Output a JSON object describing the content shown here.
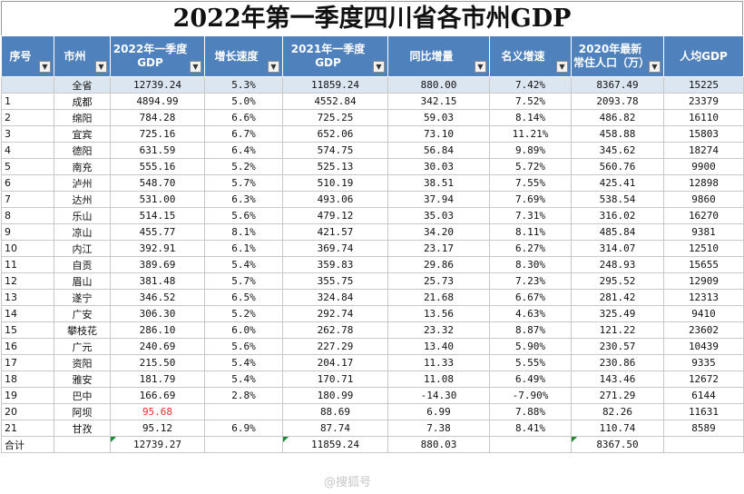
{
  "title": "2022年第一季度四川省各市州GDP",
  "headers": [
    {
      "label": "序号",
      "filter": true
    },
    {
      "label": "市州",
      "filter": true
    },
    {
      "label": "2022年一季度GDP",
      "filter": true
    },
    {
      "label": "增长速度",
      "filter": true
    },
    {
      "label": "2021年一季度GDP",
      "filter": true
    },
    {
      "label": "同比增量",
      "filter": true
    },
    {
      "label": "名义增速",
      "filter": true
    },
    {
      "label": "2020年最新常住人口（万）",
      "filter": true
    },
    {
      "label": "人均GDP",
      "filter": false
    }
  ],
  "filter_icon": "dropdown-arrow-icon",
  "rows": [
    {
      "seq": "",
      "city": "全省",
      "gdp2022": "12739.24",
      "growth": "5.3%",
      "gdp2021": "11859.24",
      "increase": "880.00",
      "nominal": "7.42%",
      "population": "8367.49",
      "per_capita": "15225"
    },
    {
      "seq": "1",
      "city": "成都",
      "gdp2022": "4894.99",
      "growth": "5.0%",
      "gdp2021": "4552.84",
      "increase": "342.15",
      "nominal": "7.52%",
      "population": "2093.78",
      "per_capita": "23379"
    },
    {
      "seq": "2",
      "city": "绵阳",
      "gdp2022": "784.28",
      "growth": "6.6%",
      "gdp2021": "725.25",
      "increase": "59.03",
      "nominal": "8.14%",
      "population": "486.82",
      "per_capita": "16110"
    },
    {
      "seq": "3",
      "city": "宜宾",
      "gdp2022": "725.16",
      "growth": "6.7%",
      "gdp2021": "652.06",
      "increase": "73.10",
      "nominal": "11.21%",
      "population": "458.88",
      "per_capita": "15803"
    },
    {
      "seq": "4",
      "city": "德阳",
      "gdp2022": "631.59",
      "growth": "6.4%",
      "gdp2021": "574.75",
      "increase": "56.84",
      "nominal": "9.89%",
      "population": "345.62",
      "per_capita": "18274"
    },
    {
      "seq": "5",
      "city": "南充",
      "gdp2022": "555.16",
      "growth": "5.2%",
      "gdp2021": "525.13",
      "increase": "30.03",
      "nominal": "5.72%",
      "population": "560.76",
      "per_capita": "9900"
    },
    {
      "seq": "6",
      "city": "泸州",
      "gdp2022": "548.70",
      "growth": "5.7%",
      "gdp2021": "510.19",
      "increase": "38.51",
      "nominal": "7.55%",
      "population": "425.41",
      "per_capita": "12898"
    },
    {
      "seq": "7",
      "city": "达州",
      "gdp2022": "531.00",
      "growth": "6.3%",
      "gdp2021": "493.06",
      "increase": "37.94",
      "nominal": "7.69%",
      "population": "538.54",
      "per_capita": "9860"
    },
    {
      "seq": "8",
      "city": "乐山",
      "gdp2022": "514.15",
      "growth": "5.6%",
      "gdp2021": "479.12",
      "increase": "35.03",
      "nominal": "7.31%",
      "population": "316.02",
      "per_capita": "16270"
    },
    {
      "seq": "9",
      "city": "凉山",
      "gdp2022": "455.77",
      "growth": "8.1%",
      "gdp2021": "421.57",
      "increase": "34.20",
      "nominal": "8.11%",
      "population": "485.84",
      "per_capita": "9381"
    },
    {
      "seq": "10",
      "city": "内江",
      "gdp2022": "392.91",
      "growth": "6.1%",
      "gdp2021": "369.74",
      "increase": "23.17",
      "nominal": "6.27%",
      "population": "314.07",
      "per_capita": "12510"
    },
    {
      "seq": "11",
      "city": "自贡",
      "gdp2022": "389.69",
      "growth": "5.4%",
      "gdp2021": "359.83",
      "increase": "29.86",
      "nominal": "8.30%",
      "population": "248.93",
      "per_capita": "15655"
    },
    {
      "seq": "12",
      "city": "眉山",
      "gdp2022": "381.48",
      "growth": "5.7%",
      "gdp2021": "355.75",
      "increase": "25.73",
      "nominal": "7.23%",
      "population": "295.52",
      "per_capita": "12909"
    },
    {
      "seq": "13",
      "city": "遂宁",
      "gdp2022": "346.52",
      "growth": "6.5%",
      "gdp2021": "324.84",
      "increase": "21.68",
      "nominal": "6.67%",
      "population": "281.42",
      "per_capita": "12313"
    },
    {
      "seq": "14",
      "city": "广安",
      "gdp2022": "306.30",
      "growth": "5.2%",
      "gdp2021": "292.74",
      "increase": "13.56",
      "nominal": "4.63%",
      "population": "325.49",
      "per_capita": "9410"
    },
    {
      "seq": "15",
      "city": "攀枝花",
      "gdp2022": "286.10",
      "growth": "6.0%",
      "gdp2021": "262.78",
      "increase": "23.32",
      "nominal": "8.87%",
      "population": "121.22",
      "per_capita": "23602"
    },
    {
      "seq": "16",
      "city": "广元",
      "gdp2022": "240.69",
      "growth": "5.6%",
      "gdp2021": "227.29",
      "increase": "13.40",
      "nominal": "5.90%",
      "population": "230.57",
      "per_capita": "10439"
    },
    {
      "seq": "17",
      "city": "资阳",
      "gdp2022": "215.50",
      "growth": "5.4%",
      "gdp2021": "204.17",
      "increase": "11.33",
      "nominal": "5.55%",
      "population": "230.86",
      "per_capita": "9335"
    },
    {
      "seq": "18",
      "city": "雅安",
      "gdp2022": "181.79",
      "growth": "5.4%",
      "gdp2021": "170.71",
      "increase": "11.08",
      "nominal": "6.49%",
      "population": "143.46",
      "per_capita": "12672"
    },
    {
      "seq": "19",
      "city": "巴中",
      "gdp2022": "166.69",
      "growth": "2.8%",
      "gdp2021": "180.99",
      "increase": "-14.30",
      "nominal": "-7.90%",
      "population": "271.29",
      "per_capita": "6144"
    },
    {
      "seq": "20",
      "city": "阿坝",
      "gdp2022": "95.68",
      "growth": "",
      "gdp2021": "88.69",
      "increase": "6.99",
      "nominal": "7.88%",
      "population": "82.26",
      "per_capita": "11631",
      "highlight": true
    },
    {
      "seq": "21",
      "city": "甘孜",
      "gdp2022": "95.12",
      "growth": "6.9%",
      "gdp2021": "87.74",
      "increase": "7.38",
      "nominal": "8.41%",
      "population": "110.74",
      "per_capita": "8589"
    }
  ],
  "total": {
    "label": "合计",
    "gdp2022": "12739.27",
    "gdp2021": "11859.24",
    "increase": "880.03",
    "population": "8367.50"
  },
  "colors": {
    "header_bg": "#4f81bd",
    "header_text": "#ffffff",
    "province_row_bg": "#dce6f1",
    "highlight_text": "#e33030",
    "error_flag": "#1e8a2e"
  }
}
